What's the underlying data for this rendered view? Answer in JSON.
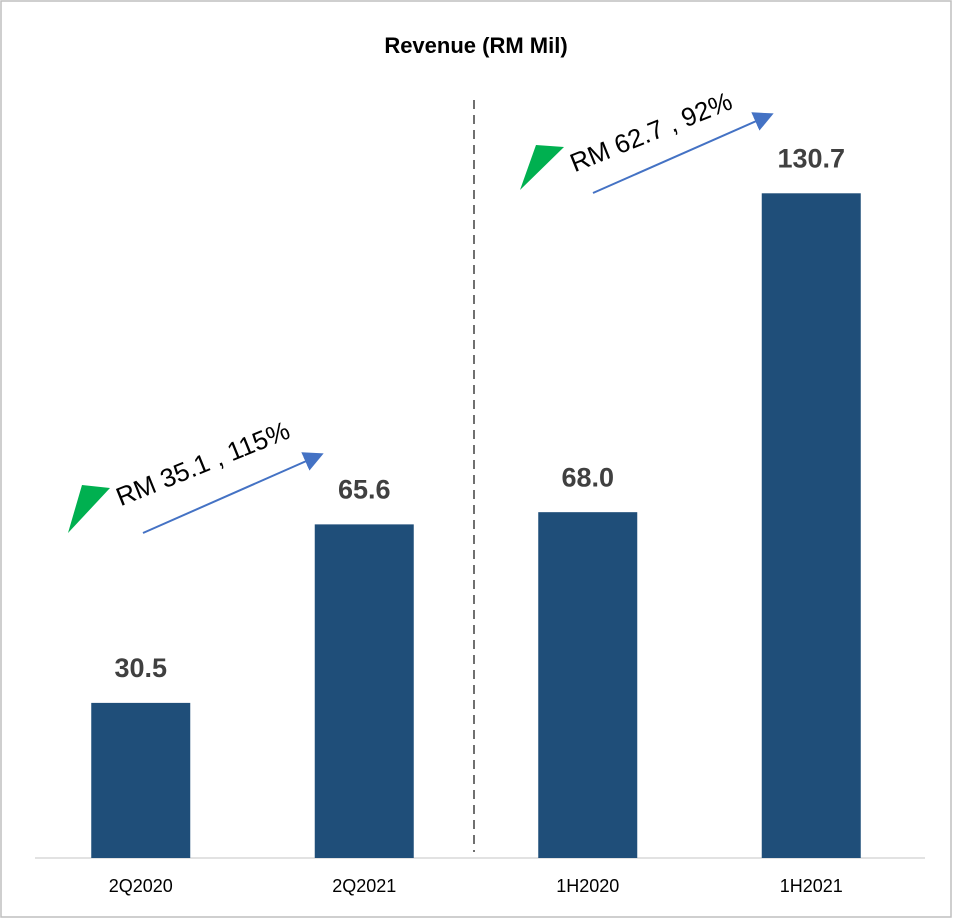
{
  "chart_data": {
    "type": "bar",
    "title": "Revenue (RM Mil)",
    "categories": [
      "2Q2020",
      "2Q2021",
      "1H2020",
      "1H2021"
    ],
    "values": [
      30.5,
      65.6,
      68.0,
      130.7
    ],
    "value_labels": [
      "30.5",
      "65.6",
      "68.0",
      "130.7"
    ],
    "color": "#1f4e79",
    "ylim": [
      0,
      140
    ],
    "annotations": [
      "RM 35.1 , 115%",
      "RM 62.7 , 92%"
    ]
  }
}
